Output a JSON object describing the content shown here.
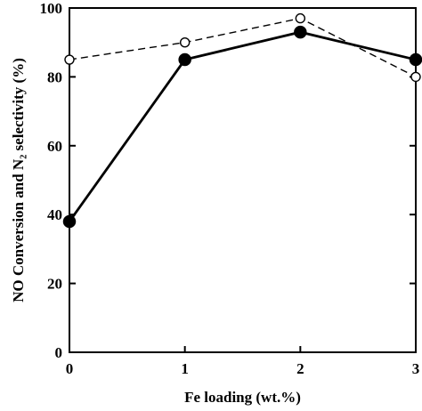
{
  "chart_data": {
    "type": "line",
    "title": "",
    "xlabel": "Fe loading  (wt.%)",
    "ylabel": "NO Conversion and N₂ selectivity (%)",
    "x": [
      0,
      1,
      2,
      3
    ],
    "xticks": [
      "0",
      "1",
      "2",
      "3"
    ],
    "yticks": [
      "0",
      "20",
      "40",
      "60",
      "80",
      "100"
    ],
    "xlim": [
      0,
      3
    ],
    "ylim": [
      0,
      100
    ],
    "grid": false,
    "series": [
      {
        "values": [
          38,
          85,
          93,
          85
        ],
        "marker": "filled-circle",
        "line": "solid",
        "color": "#000000"
      },
      {
        "values": [
          85,
          90,
          97,
          80
        ],
        "marker": "open-circle",
        "line": "dashed",
        "color": "#000000"
      }
    ]
  }
}
